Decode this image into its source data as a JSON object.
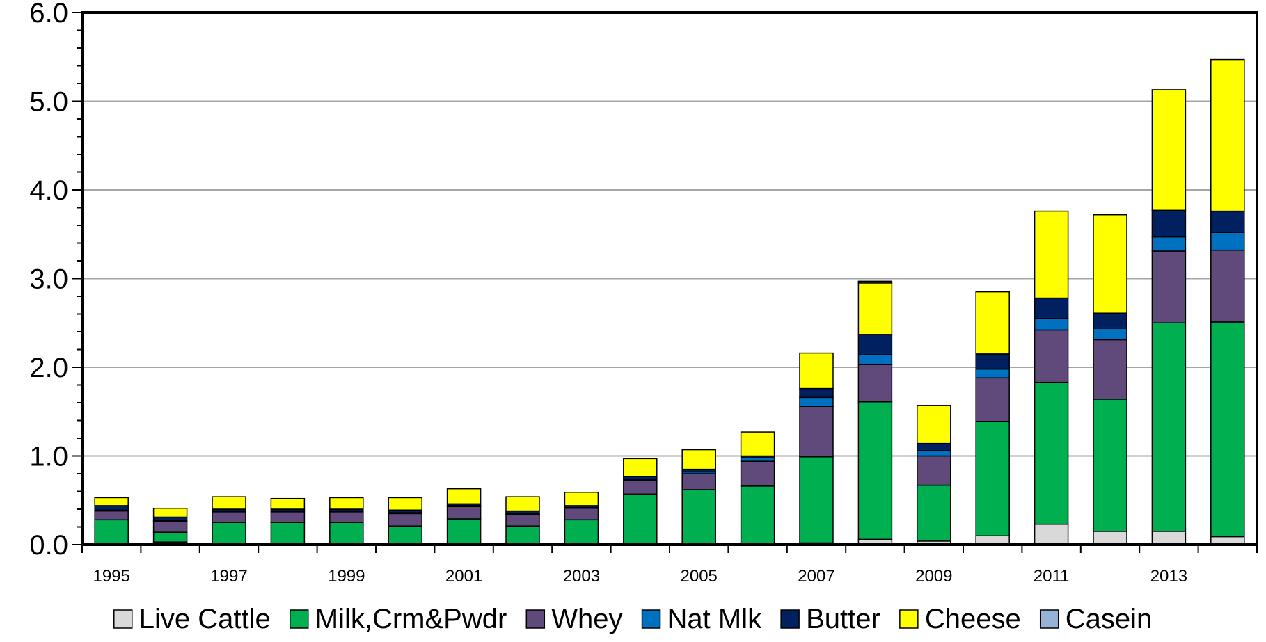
{
  "chart_data": {
    "type": "bar",
    "stacked": true,
    "title": "",
    "xlabel": "",
    "ylabel": "",
    "ylim": [
      0,
      6
    ],
    "yticks": [
      "0.0",
      "1.0",
      "2.0",
      "3.0",
      "4.0",
      "5.0",
      "6.0"
    ],
    "grid": "horizontal",
    "legend_position": "bottom",
    "categories": [
      "1995",
      "1996",
      "1997",
      "1998",
      "1999",
      "2000",
      "2001",
      "2002",
      "2003",
      "2004",
      "2005",
      "2006",
      "2007",
      "2008",
      "2009",
      "2010",
      "2011",
      "2012",
      "2013",
      "2014"
    ],
    "tick_labels": [
      "1995",
      "",
      "1997",
      "",
      "1999",
      "",
      "2001",
      "",
      "2003",
      "",
      "2005",
      "",
      "2007",
      "",
      "2009",
      "",
      "2011",
      "",
      "2013",
      ""
    ],
    "series": [
      {
        "name": "Live Cattle",
        "color": "#d9d9d9",
        "values": [
          0.01,
          0.03,
          0.01,
          0.01,
          0.01,
          0.01,
          0.01,
          0.01,
          0.01,
          0.01,
          0.01,
          0.01,
          0.02,
          0.06,
          0.04,
          0.1,
          0.23,
          0.15,
          0.15,
          0.09
        ]
      },
      {
        "name": "Milk,Crm&Pwdr",
        "color": "#00b050",
        "values": [
          0.27,
          0.11,
          0.24,
          0.24,
          0.24,
          0.2,
          0.28,
          0.2,
          0.27,
          0.56,
          0.61,
          0.65,
          0.97,
          1.55,
          0.63,
          1.29,
          1.6,
          1.49,
          2.35,
          2.42
        ]
      },
      {
        "name": "Whey",
        "color": "#604a7b",
        "values": [
          0.1,
          0.12,
          0.12,
          0.12,
          0.12,
          0.14,
          0.14,
          0.13,
          0.13,
          0.15,
          0.18,
          0.28,
          0.57,
          0.42,
          0.33,
          0.49,
          0.59,
          0.67,
          0.81,
          0.81
        ]
      },
      {
        "name": "Nat Mlk",
        "color": "#0070c0",
        "values": [
          0.01,
          0.01,
          0.01,
          0.01,
          0.01,
          0.01,
          0.01,
          0.01,
          0.01,
          0.01,
          0.02,
          0.04,
          0.1,
          0.11,
          0.06,
          0.1,
          0.13,
          0.13,
          0.16,
          0.2
        ]
      },
      {
        "name": "Butter",
        "color": "#002060",
        "values": [
          0.05,
          0.04,
          0.02,
          0.02,
          0.02,
          0.03,
          0.02,
          0.03,
          0.02,
          0.04,
          0.03,
          0.02,
          0.1,
          0.23,
          0.08,
          0.17,
          0.23,
          0.17,
          0.3,
          0.24
        ]
      },
      {
        "name": "Cheese",
        "color": "#ffff00",
        "values": [
          0.09,
          0.1,
          0.14,
          0.12,
          0.13,
          0.14,
          0.17,
          0.16,
          0.15,
          0.2,
          0.22,
          0.27,
          0.4,
          0.58,
          0.43,
          0.7,
          0.98,
          1.11,
          1.36,
          1.71
        ]
      },
      {
        "name": "Casein",
        "color": "#95b3d7",
        "values": [
          0,
          0,
          0,
          0,
          0,
          0,
          0,
          0,
          0,
          0,
          0,
          0,
          0,
          0.02,
          0,
          0,
          0,
          0,
          0,
          0
        ]
      }
    ]
  }
}
